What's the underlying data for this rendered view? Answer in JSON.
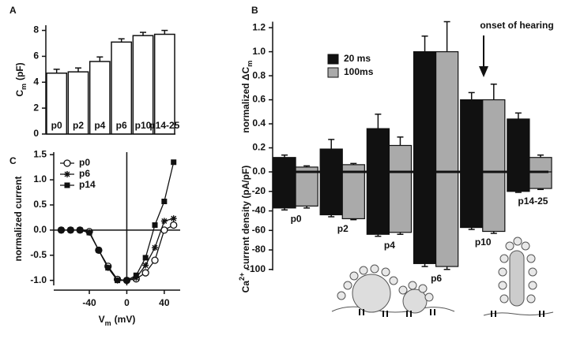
{
  "chart_data": [
    {
      "type": "bar",
      "panel_label": "A",
      "y_label": "C",
      "y_label_sub": "m",
      "y_label_unit": "(pF)",
      "categories": [
        "p0",
        "p2",
        "p4",
        "p6",
        "p10",
        "p14-25"
      ],
      "values": [
        4.7,
        4.8,
        5.6,
        7.1,
        7.6,
        7.7
      ],
      "errors": [
        0.3,
        0.3,
        0.35,
        0.25,
        0.25,
        0.3
      ],
      "color": "#ffffff",
      "ylim": [
        0,
        8.4
      ],
      "yticks": [
        0,
        2,
        4,
        6,
        8
      ]
    },
    {
      "type": "dual_bar",
      "panel_label": "B",
      "y_label": "normalized ΔC",
      "y_label_sub": "m",
      "y2_label_pre": "Ca",
      "y2_label_sup": "2+",
      "y2_label": "current density (pA/pF)",
      "annotation": "onset of hearing",
      "categories": [
        "p0",
        "p2",
        "p4",
        "p6",
        "p10",
        "p14-25"
      ],
      "series": [
        {
          "name": "20 ms",
          "color": "#111111",
          "values": [
            0.12,
            0.19,
            0.36,
            1.0,
            0.6,
            0.44
          ],
          "errors": [
            0.02,
            0.08,
            0.12,
            0.13,
            0.06,
            0.05
          ],
          "values_y2": [
            -37,
            -44,
            -64,
            -94,
            -57,
            -20
          ],
          "errors_y2": [
            2,
            2,
            2,
            3,
            2,
            1
          ]
        },
        {
          "name": "100ms",
          "color": "#aaaaaa",
          "values": [
            0.04,
            0.06,
            0.22,
            1.0,
            0.6,
            0.12
          ],
          "errors": [
            0.01,
            0.01,
            0.07,
            0.25,
            0.13,
            0.02
          ],
          "values_y2": [
            -35,
            -48,
            -62,
            -97,
            -61,
            -17
          ],
          "errors_y2": [
            2,
            1,
            2,
            3,
            2,
            1
          ]
        }
      ],
      "ylim": [
        -0.82,
        1.25
      ],
      "yticks": [
        {
          "value": 0,
          "label": "0.0"
        },
        0.2,
        0.4,
        0.6,
        0.8,
        {
          "value": 1,
          "label": "1.0"
        },
        1.2
      ],
      "y2lim": [
        -101,
        154
      ],
      "y2ticks": [
        -100,
        -80,
        -60,
        -40,
        -20
      ],
      "legend": "upper left"
    },
    {
      "type": "line",
      "panel_label": "C",
      "y_label": "normalized current",
      "x_label": "V",
      "x_label_sub": "m",
      "x_label_unit": "(mV)",
      "x": [
        -70,
        -60,
        -50,
        -40,
        -30,
        -20,
        -10,
        0,
        10,
        20,
        30,
        40,
        50
      ],
      "series": [
        {
          "name": "p0",
          "marker": "circle",
          "color": "#111111",
          "values": [
            0,
            0,
            0,
            -0.03,
            -0.4,
            -0.72,
            -0.98,
            -1.0,
            -0.97,
            -0.85,
            -0.6,
            0.0,
            0.1
          ]
        },
        {
          "name": "p6",
          "marker": "asterisk",
          "color": "#111111",
          "values": [
            0,
            0,
            0,
            -0.05,
            -0.4,
            -0.75,
            -1.0,
            -1.0,
            -0.95,
            -0.7,
            -0.35,
            0.18,
            0.23
          ]
        },
        {
          "name": "p14",
          "marker": "square",
          "color": "#111111",
          "values": [
            0,
            0,
            0,
            -0.05,
            -0.4,
            -0.75,
            -1.0,
            -1.0,
            -0.9,
            -0.55,
            0.1,
            0.57,
            1.35
          ]
        }
      ],
      "xlim": [
        -78,
        57
      ],
      "xticks": [
        -40,
        0,
        40
      ],
      "ylim": [
        -1.1,
        1.55
      ],
      "yticks": [
        {
          "value": -1,
          "label": "-1.0"
        },
        {
          "value": -0.5,
          "label": "-0.5"
        },
        {
          "value": 0,
          "label": "0.0"
        },
        0.5,
        {
          "value": 1,
          "label": "1.0"
        },
        1.5
      ],
      "legend": "upper left"
    }
  ]
}
